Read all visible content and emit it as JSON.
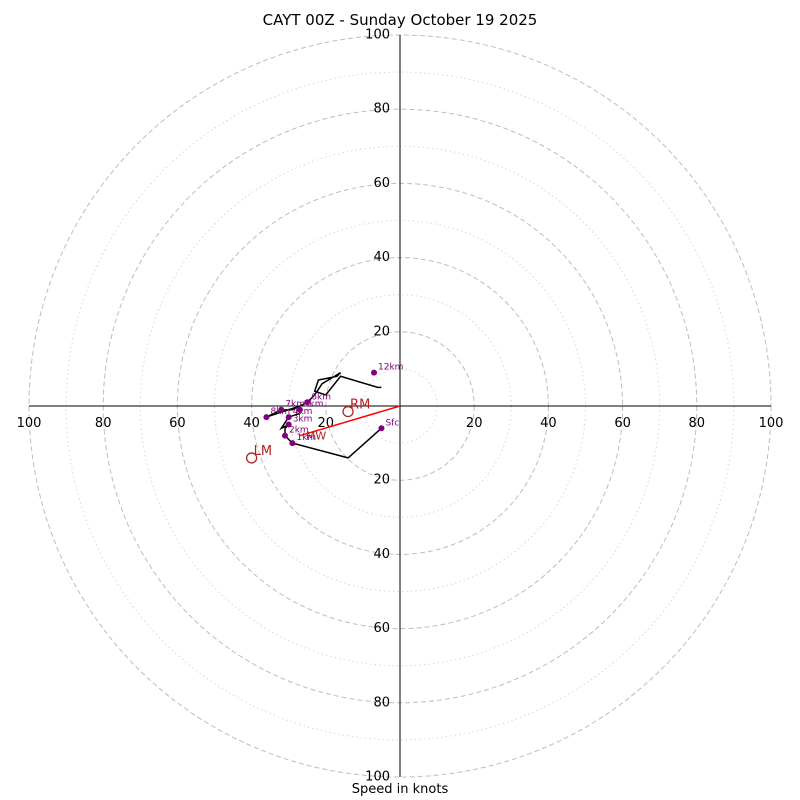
{
  "chart_data": {
    "type": "hodograph",
    "title": "CAYT 00Z - Sunday October 19 2025",
    "xlabel": "Speed in knots",
    "rmax": 100,
    "rings_major": [
      20,
      40,
      60,
      80,
      100
    ],
    "rings_minor": [
      10,
      30,
      50,
      70,
      90
    ],
    "tick_labels": {
      "left": [
        "100",
        "80",
        "60",
        "40",
        "20"
      ],
      "right": [
        "20",
        "40",
        "60",
        "80",
        "100"
      ],
      "top": [
        "100",
        "80",
        "60",
        "40",
        "20"
      ],
      "bottom": [
        "20",
        "40",
        "60",
        "80",
        "100"
      ]
    },
    "hodograph_trace": [
      [
        -5,
        -6
      ],
      [
        -14,
        -14
      ],
      [
        -29,
        -10
      ],
      [
        -31,
        -8
      ],
      [
        -31,
        -6
      ],
      [
        -30,
        -5
      ],
      [
        -32,
        -6
      ],
      [
        -30,
        -3
      ],
      [
        -27,
        -2
      ],
      [
        -27,
        0
      ],
      [
        -36,
        -3
      ],
      [
        -32,
        -1
      ],
      [
        -29,
        -1
      ],
      [
        -25,
        1
      ],
      [
        -24,
        2
      ],
      [
        -23,
        3
      ],
      [
        -21,
        6
      ],
      [
        -16,
        9
      ],
      [
        -17,
        8
      ],
      [
        -22,
        7
      ],
      [
        -23,
        4
      ],
      [
        -20,
        3
      ],
      [
        -16,
        8
      ],
      [
        -6,
        5
      ],
      [
        -5,
        5
      ]
    ],
    "height_markers": [
      {
        "label": "Sfc",
        "u": -5,
        "v": -6
      },
      {
        "label": "1km",
        "u": -29,
        "v": -10
      },
      {
        "label": "2km",
        "u": -31,
        "v": -8
      },
      {
        "label": "3km",
        "u": -30,
        "v": -5
      },
      {
        "label": "4km",
        "u": -30,
        "v": -3
      },
      {
        "label": "5km",
        "u": -27,
        "v": -1
      },
      {
        "label": "6km",
        "u": -25,
        "v": 1
      },
      {
        "label": "7km",
        "u": -32,
        "v": -1
      },
      {
        "label": "8km",
        "u": -36,
        "v": -3
      },
      {
        "label": "12km",
        "u": -7,
        "v": 9
      }
    ],
    "storm_motion": {
      "rm": {
        "label": "RM",
        "u": -14,
        "v": -1.5
      },
      "lm": {
        "label": "LM",
        "u": -40,
        "v": -14
      },
      "mean_wind": {
        "label": "MW",
        "u": -27,
        "v": -8
      },
      "bunkers_vector": {
        "u": -27,
        "v": -8
      }
    },
    "colors": {
      "trace": "#000000",
      "height_points": "#800080",
      "storm_markers": "#b22222",
      "mean_wind_vector": "#ff0000",
      "grid": "#bdbdbd"
    }
  }
}
